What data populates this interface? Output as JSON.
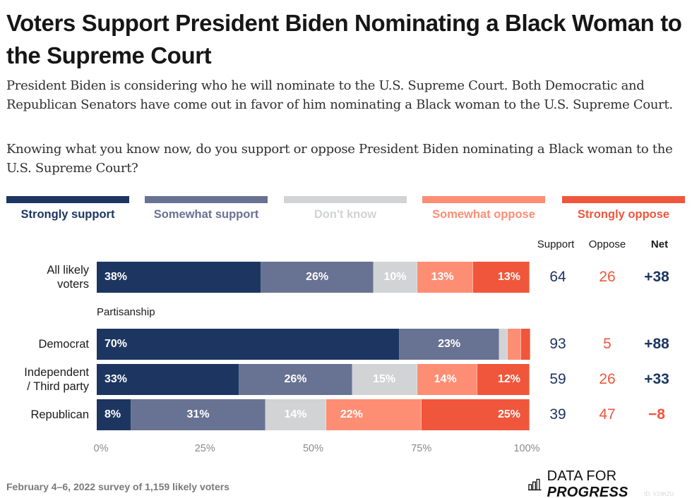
{
  "header": {
    "title": "Voters Support President Biden Nominating a Black Woman to the Supreme Court",
    "intro": "President Biden is considering who he will nominate to the U.S. Supreme Court. Both Democratic and Republican Senators have come out in favor of him nominating a Black woman to the U.S. Supreme Court.",
    "question": "Knowing what you know now, do you support or oppose President Biden nominating a Black woman to the U.S. Supreme Court?"
  },
  "colors": {
    "strongly_support": "#1d3661",
    "somewhat_support": "#687292",
    "dont_know": "#d1d3d4",
    "somewhat_oppose": "#fd8e74",
    "strongly_oppose": "#f0563b",
    "support_text": "#1d3661",
    "oppose_text": "#f0563b"
  },
  "footer": {
    "note": "February 4–6, 2022 survey of 1,159 likely voters",
    "brand_plain": "DATA FOR ",
    "brand_bold": "PROGRESS",
    "brand_icon": "bar-chart-icon",
    "id_text": "ID: V24K2U"
  },
  "chart_data": {
    "type": "bar",
    "orientation": "horizontal-stacked-100",
    "title": "Voters Support President Biden Nominating a Black Woman to the Supreme Court",
    "xlabel": "",
    "ylabel": "",
    "xlim": [
      0,
      100
    ],
    "x_ticks": [
      "0%",
      "25%",
      "50%",
      "75%",
      "100%"
    ],
    "legend_position": "top",
    "legend": [
      "Strongly support",
      "Somewhat support",
      "Don't know",
      "Somewhat oppose",
      "Strongly oppose"
    ],
    "summary_headers": {
      "support": "Support",
      "oppose": "Oppose",
      "net": "Net"
    },
    "group_label": "Partisanship",
    "categories": [
      "All likely voters",
      "Democrat",
      "Independent / Third party",
      "Republican"
    ],
    "category_lines": [
      [
        "All likely",
        "voters"
      ],
      [
        "Democrat"
      ],
      [
        "Independent",
        "/ Third party"
      ],
      [
        "Republican"
      ]
    ],
    "series": [
      {
        "name": "Strongly support",
        "values": [
          38,
          70,
          33,
          8
        ]
      },
      {
        "name": "Somewhat support",
        "values": [
          26,
          23,
          26,
          31
        ]
      },
      {
        "name": "Don't know",
        "values": [
          10,
          2,
          15,
          14
        ]
      },
      {
        "name": "Somewhat oppose",
        "values": [
          13,
          3,
          14,
          22
        ]
      },
      {
        "name": "Strongly oppose",
        "values": [
          13,
          2,
          12,
          25
        ]
      }
    ],
    "data_labels": [
      [
        "38%",
        "26%",
        "10%",
        "13%",
        "13%"
      ],
      [
        "70%",
        "23%",
        "",
        "",
        ""
      ],
      [
        "33%",
        "26%",
        "15%",
        "14%",
        "12%"
      ],
      [
        "8%",
        "31%",
        "14%",
        "22%",
        "25%"
      ]
    ],
    "support": [
      "64",
      "93",
      "59",
      "39"
    ],
    "oppose": [
      "26",
      "5",
      "26",
      "47"
    ],
    "net": [
      "+38",
      "+88",
      "+33",
      "−8"
    ]
  }
}
